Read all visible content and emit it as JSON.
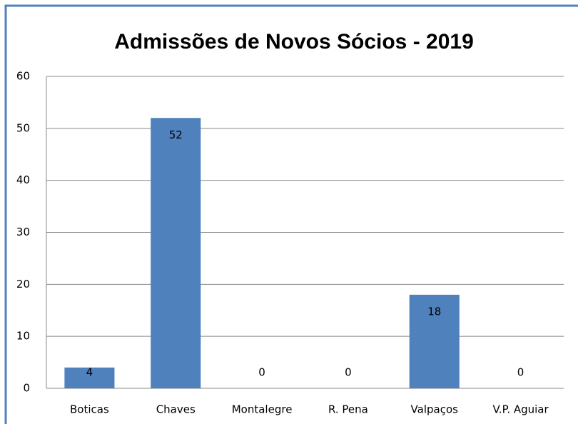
{
  "chart_data": {
    "type": "bar",
    "title": "Admissões de Novos Sócios - 2019",
    "categories": [
      "Boticas",
      "Chaves",
      "Montalegre",
      "R. Pena",
      "Valpaços",
      "V.P. Aguiar"
    ],
    "values": [
      4,
      52,
      0,
      0,
      18,
      0
    ],
    "color": "#4f81bd",
    "ylim": [
      0,
      60
    ],
    "yticks": [
      0,
      10,
      20,
      30,
      40,
      50,
      60
    ],
    "grid": true
  }
}
